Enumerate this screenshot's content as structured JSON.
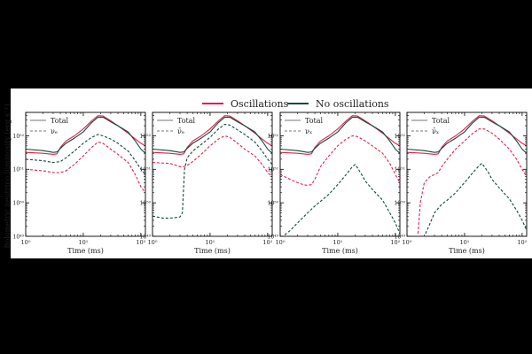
{
  "figure": {
    "legend": [
      {
        "label": "Oscillations",
        "color": "#e0204a"
      },
      {
        "label": "No oscillations",
        "color": "#0d4a3a"
      }
    ],
    "ylabel": "Bolometric neutrino luminosity (erg s⁻¹)",
    "xlabel": "Time (ms)"
  },
  "chart_data": [
    {
      "type": "line",
      "xscale": "log",
      "yscale": "log",
      "xlim": [
        1,
        120
      ],
      "ylim": [
        1e+49,
        5e+52
      ],
      "xticks": [
        "10⁰",
        "10¹",
        "10²"
      ],
      "yticks": [
        "10⁴⁹",
        "10⁵⁰",
        "10⁵¹",
        "10⁵²"
      ],
      "xlabel": "Time (ms)",
      "ylabel": "Bolometric neutrino luminosity (erg s⁻¹)",
      "legend": [
        "Total",
        "νₑ"
      ],
      "series": [
        {
          "name": "Total",
          "model": "Oscillations",
          "style": "solid",
          "x": [
            1,
            2,
            3,
            3.5,
            4,
            5,
            7,
            10,
            14,
            18,
            22,
            30,
            40,
            60,
            80,
            100,
            120
          ],
          "y": [
            3.2e+51,
            3e+51,
            2.8e+51,
            2.9e+51,
            4.5e+51,
            7e+51,
            1e+52,
            1.6e+52,
            2.8e+52,
            4e+52,
            3.9e+52,
            2.8e+52,
            2e+52,
            1.2e+52,
            8e+51,
            6e+51,
            5e+51
          ]
        },
        {
          "name": "Total",
          "model": "No oscillations",
          "style": "solid",
          "x": [
            1,
            2,
            3,
            3.5,
            4,
            5,
            7,
            10,
            14,
            18,
            22,
            30,
            40,
            60,
            80,
            100,
            120
          ],
          "y": [
            4e+51,
            3.6e+51,
            3.2e+51,
            3.3e+51,
            4.2e+51,
            6e+51,
            8.5e+51,
            1.3e+52,
            2.5e+52,
            3.6e+52,
            3.6e+52,
            2.6e+52,
            2e+52,
            1.3e+52,
            7e+51,
            4e+51,
            3e+51
          ]
        },
        {
          "name": "νₑ",
          "model": "Oscillations",
          "style": "dashed",
          "x": [
            1,
            2,
            3,
            4,
            5,
            7,
            10,
            14,
            18,
            22,
            30,
            40,
            60,
            80,
            100,
            120
          ],
          "y": [
            1e+51,
            9e+50,
            8e+50,
            8e+50,
            9e+50,
            1.4e+51,
            2.5e+51,
            4.5e+51,
            6.5e+51,
            6e+51,
            4e+51,
            2.8e+51,
            1.6e+51,
            7e+50,
            3e+50,
            2e+50
          ]
        },
        {
          "name": "νₑ",
          "model": "No oscillations",
          "style": "dashed",
          "x": [
            1,
            2,
            3,
            4,
            5,
            7,
            10,
            14,
            18,
            22,
            30,
            40,
            60,
            80,
            100,
            120
          ],
          "y": [
            2e+51,
            1.8e+51,
            1.6e+51,
            1.7e+51,
            2.2e+51,
            3.5e+51,
            6e+51,
            9e+51,
            1.1e+52,
            1e+52,
            8e+51,
            6e+51,
            3.5e+51,
            1.8e+51,
            1e+51,
            7e+50
          ]
        }
      ]
    },
    {
      "type": "line",
      "xscale": "log",
      "yscale": "log",
      "xlim": [
        1,
        120
      ],
      "ylim": [
        1e+49,
        5e+52
      ],
      "xticks": [
        "10⁰",
        "10¹",
        "10²"
      ],
      "yticks": [
        "10⁴⁹",
        "10⁵⁰",
        "10⁵¹",
        "10⁵²"
      ],
      "xlabel": "Time (ms)",
      "legend": [
        "Total",
        "ν̄ₑ"
      ],
      "series": [
        {
          "name": "Total",
          "model": "Oscillations",
          "style": "solid",
          "x": [
            1,
            2,
            3,
            3.5,
            4,
            5,
            7,
            10,
            14,
            18,
            22,
            30,
            40,
            60,
            80,
            100,
            120
          ],
          "y": [
            3.2e+51,
            3e+51,
            2.8e+51,
            2.9e+51,
            4.5e+51,
            7e+51,
            1e+52,
            1.6e+52,
            2.8e+52,
            4e+52,
            3.9e+52,
            2.8e+52,
            2e+52,
            1.2e+52,
            8e+51,
            6e+51,
            5e+51
          ]
        },
        {
          "name": "Total",
          "model": "No oscillations",
          "style": "solid",
          "x": [
            1,
            2,
            3,
            3.5,
            4,
            5,
            7,
            10,
            14,
            18,
            22,
            30,
            40,
            60,
            80,
            100,
            120
          ],
          "y": [
            4e+51,
            3.6e+51,
            3.2e+51,
            3.3e+51,
            4.2e+51,
            6e+51,
            8.5e+51,
            1.3e+52,
            2.5e+52,
            3.6e+52,
            3.6e+52,
            2.6e+52,
            2e+52,
            1.3e+52,
            7e+51,
            4e+51,
            3e+51
          ]
        },
        {
          "name": "ν̄ₑ",
          "model": "Oscillations",
          "style": "dashed",
          "x": [
            1,
            2,
            3,
            3.5,
            4,
            5,
            7,
            10,
            14,
            18,
            22,
            30,
            40,
            60,
            80,
            100,
            120
          ],
          "y": [
            1.6e+51,
            1.5e+51,
            1.2e+51,
            1.2e+51,
            1.3e+51,
            1.7e+51,
            2.8e+51,
            5e+51,
            8e+51,
            1e+52,
            9e+51,
            6e+51,
            4e+51,
            2.5e+51,
            1.4e+51,
            8e+50,
            6e+50
          ]
        },
        {
          "name": "ν̄ₑ",
          "model": "No oscillations",
          "style": "dashed",
          "x": [
            1,
            1.5,
            2,
            2.5,
            3,
            3.3,
            3.6,
            4,
            5,
            7,
            10,
            14,
            18,
            22,
            30,
            40,
            60,
            80,
            100,
            120
          ],
          "y": [
            4e+49,
            3.5e+49,
            3.5e+49,
            3.6e+49,
            3.8e+49,
            5e+49,
            1e+51,
            2.2e+51,
            3.5e+51,
            5.5e+51,
            9e+51,
            1.6e+52,
            2.2e+52,
            2.1e+52,
            1.5e+52,
            1.1e+52,
            6.5e+51,
            3.5e+51,
            2e+51,
            1.4e+51
          ]
        }
      ]
    },
    {
      "type": "line",
      "xscale": "log",
      "yscale": "log",
      "xlim": [
        1,
        120
      ],
      "ylim": [
        1e+49,
        5e+52
      ],
      "xticks": [
        "10⁰",
        "10¹",
        "10²"
      ],
      "yticks": [
        "10⁴⁹",
        "10⁵⁰",
        "10⁵¹",
        "10⁵²"
      ],
      "xlabel": "Time (ms)",
      "legend": [
        "Total",
        "νₓ"
      ],
      "series": [
        {
          "name": "Total",
          "model": "Oscillations",
          "style": "solid",
          "x": [
            1,
            2,
            3,
            3.5,
            4,
            5,
            7,
            10,
            14,
            18,
            22,
            30,
            40,
            60,
            80,
            100,
            120
          ],
          "y": [
            3.2e+51,
            3e+51,
            2.8e+51,
            2.9e+51,
            4.5e+51,
            7e+51,
            1e+52,
            1.6e+52,
            2.8e+52,
            4e+52,
            3.9e+52,
            2.8e+52,
            2e+52,
            1.2e+52,
            8e+51,
            6e+51,
            5e+51
          ]
        },
        {
          "name": "Total",
          "model": "No oscillations",
          "style": "solid",
          "x": [
            1,
            2,
            3,
            3.5,
            4,
            5,
            7,
            10,
            14,
            18,
            22,
            30,
            40,
            60,
            80,
            100,
            120
          ],
          "y": [
            4e+51,
            3.6e+51,
            3.2e+51,
            3.3e+51,
            4.2e+51,
            6e+51,
            8.5e+51,
            1.3e+52,
            2.5e+52,
            3.6e+52,
            3.6e+52,
            2.6e+52,
            2e+52,
            1.3e+52,
            7e+51,
            4e+51,
            3e+51
          ]
        },
        {
          "name": "νₓ",
          "model": "Oscillations",
          "style": "dashed",
          "x": [
            1,
            1.5,
            2,
            2.5,
            3,
            3.5,
            4,
            5,
            7,
            10,
            14,
            18,
            22,
            30,
            40,
            60,
            80,
            100,
            120
          ],
          "y": [
            7e+50,
            5e+50,
            4e+50,
            3.5e+50,
            3.3e+50,
            3.5e+50,
            5e+50,
            1.2e+51,
            2.5e+51,
            5e+51,
            8e+51,
            1e+52,
            9.5e+51,
            7e+51,
            5e+51,
            3e+51,
            1.5e+51,
            7e+50,
            4e+50
          ]
        },
        {
          "name": "νₓ",
          "model": "No oscillations",
          "style": "dashed",
          "x": [
            1.2,
            1.5,
            2,
            3,
            4,
            5,
            7,
            10,
            14,
            18,
            20,
            22,
            26,
            30,
            40,
            60,
            80,
            100,
            120
          ],
          "y": [
            1.1e+49,
            1.5e+49,
            2.5e+49,
            5e+49,
            8e+49,
            1.1e+50,
            1.8e+50,
            3.5e+50,
            7e+50,
            1.2e+51,
            1.4e+51,
            1.1e+51,
            7e+50,
            4.5e+50,
            2.5e+50,
            1.2e+50,
            5e+49,
            2.5e+49,
            1.2e+49
          ]
        }
      ]
    },
    {
      "type": "line",
      "xscale": "log",
      "yscale": "log",
      "xlim": [
        1,
        120
      ],
      "ylim": [
        1e+49,
        5e+52
      ],
      "xticks": [
        "10⁰",
        "10¹",
        "10²"
      ],
      "yticks": [
        "10⁴⁹",
        "10⁵⁰",
        "10⁵¹",
        "10⁵²"
      ],
      "xlabel": "Time (ms)",
      "legend": [
        "Total",
        "ν̄ₓ"
      ],
      "series": [
        {
          "name": "Total",
          "model": "Oscillations",
          "style": "solid",
          "x": [
            1,
            2,
            3,
            3.5,
            4,
            5,
            7,
            10,
            14,
            18,
            22,
            30,
            40,
            60,
            80,
            100,
            120
          ],
          "y": [
            3.2e+51,
            3e+51,
            2.8e+51,
            2.9e+51,
            4.5e+51,
            7e+51,
            1e+52,
            1.6e+52,
            2.8e+52,
            4e+52,
            3.9e+52,
            2.8e+52,
            2e+52,
            1.2e+52,
            8e+51,
            6e+51,
            5e+51
          ]
        },
        {
          "name": "Total",
          "model": "No oscillations",
          "style": "solid",
          "x": [
            1,
            2,
            3,
            3.5,
            4,
            5,
            7,
            10,
            14,
            18,
            22,
            30,
            40,
            60,
            80,
            100,
            120
          ],
          "y": [
            4e+51,
            3.6e+51,
            3.2e+51,
            3.3e+51,
            4.2e+51,
            6e+51,
            8.5e+51,
            1.3e+52,
            2.5e+52,
            3.6e+52,
            3.6e+52,
            2.6e+52,
            2e+52,
            1.3e+52,
            7e+51,
            4e+51,
            3e+51
          ]
        },
        {
          "name": "ν̄ₓ",
          "model": "Oscillations",
          "style": "dashed",
          "x": [
            1.55,
            1.7,
            2,
            2.5,
            3,
            3.5,
            4,
            5,
            7,
            10,
            14,
            18,
            22,
            30,
            40,
            60,
            80,
            100,
            120
          ],
          "y": [
            1.2e+49,
            1e+50,
            4e+50,
            6e+50,
            7e+50,
            8e+50,
            1.2e+51,
            2e+51,
            4e+51,
            7e+51,
            1.2e+52,
            1.6e+52,
            1.6e+52,
            1.2e+52,
            8e+51,
            4e+51,
            2e+51,
            1e+51,
            6e+50
          ]
        },
        {
          "name": "ν̄ₓ",
          "model": "No oscillations",
          "style": "dashed",
          "x": [
            2.1,
            2.4,
            3,
            4,
            5,
            7,
            10,
            14,
            18,
            20,
            22,
            26,
            30,
            40,
            60,
            80,
            100,
            120
          ],
          "y": [
            1.2e+49,
            2e+49,
            5e+49,
            9e+49,
            1.2e+50,
            2e+50,
            4e+50,
            8e+50,
            1.3e+51,
            1.5e+51,
            1.2e+51,
            8e+50,
            5e+50,
            2.8e+50,
            1.3e+50,
            6e+49,
            3e+49,
            1.5e+49
          ]
        }
      ]
    }
  ]
}
